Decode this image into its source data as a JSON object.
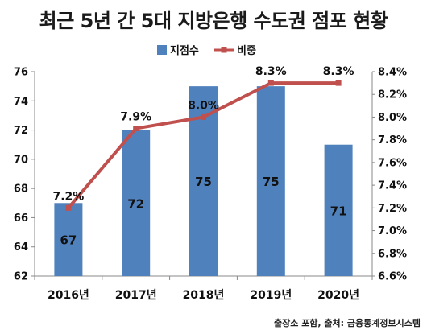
{
  "chart_data": {
    "type": "bar",
    "title": "최근 5년 간 5대 지방은행 수도권 점포 현황",
    "categories": [
      "2016년",
      "2017년",
      "2018년",
      "2019년",
      "2020년"
    ],
    "series": [
      {
        "name": "지점수",
        "type": "bar",
        "axis": "left",
        "color": "#4f81bd",
        "values": [
          67,
          72,
          75,
          75,
          71
        ],
        "labels": [
          "67",
          "72",
          "75",
          "75",
          "71"
        ]
      },
      {
        "name": "비중",
        "type": "line",
        "axis": "right",
        "color": "#c0504d",
        "values": [
          7.2,
          7.9,
          8.0,
          8.3,
          8.3
        ],
        "labels": [
          "7.2%",
          "7.9%",
          "8.0%",
          "8.3%",
          "8.3%"
        ]
      }
    ],
    "y_left": {
      "min": 62,
      "max": 76,
      "ticks": [
        "62",
        "64",
        "66",
        "68",
        "70",
        "72",
        "74",
        "76"
      ]
    },
    "y_right": {
      "min": 6.6,
      "max": 8.4,
      "ticks": [
        "6.6%",
        "6.8%",
        "7.0%",
        "7.2%",
        "7.4%",
        "7.6%",
        "7.8%",
        "8.0%",
        "8.2%",
        "8.4%"
      ]
    },
    "grid": false,
    "legend_position": "top-center",
    "source": "출장소 포함, 출처: 금융통계정보시스템"
  }
}
